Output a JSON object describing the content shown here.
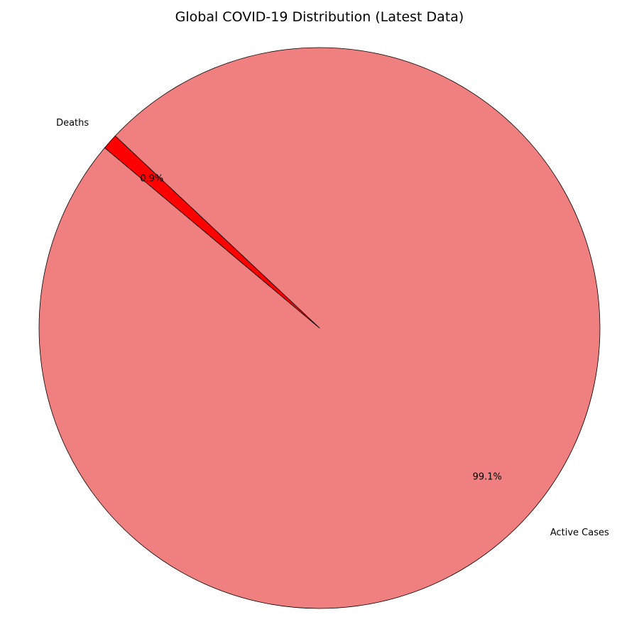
{
  "chart_data": {
    "type": "pie",
    "title": "Global COVID-19 Distribution (Latest Data)",
    "categories": [
      "Active Cases",
      "Deaths"
    ],
    "values": [
      99.1,
      0.9
    ],
    "percent_labels": [
      "99.1%",
      "0.9%"
    ],
    "colors": [
      "#f08080",
      "#ff0000"
    ],
    "edge_color": "#000000",
    "start_angle_deg": 140,
    "legend": "none"
  }
}
